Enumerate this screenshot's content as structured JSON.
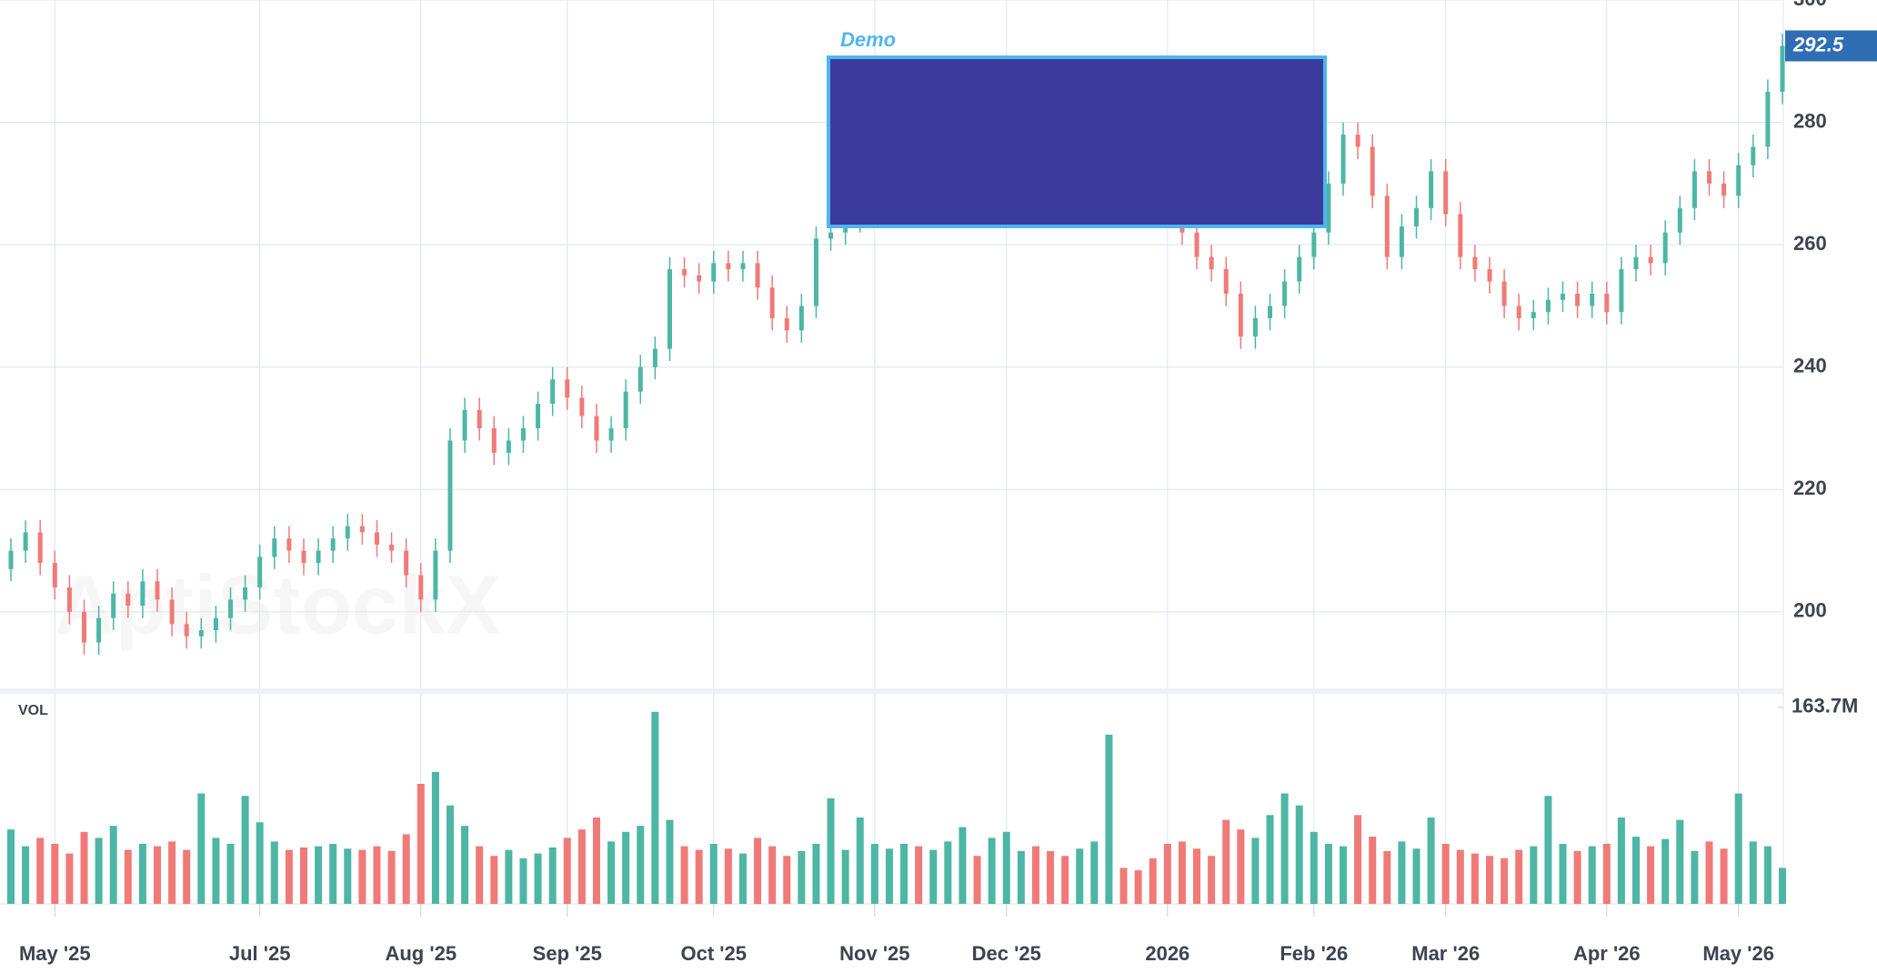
{
  "chart_data": {
    "type": "candlestick",
    "watermark": "AptiStockX",
    "annotation": "Demo",
    "up_color": "#4db6a4",
    "down_color": "#ef7a78",
    "grid": true,
    "ylim": [
      187.5,
      300
    ],
    "yticks": [
      200,
      220,
      240,
      260,
      280,
      300
    ],
    "categories": [
      null,
      null,
      null,
      "May '25",
      null,
      null,
      null,
      null,
      null,
      null,
      null,
      null,
      null,
      null,
      null,
      null,
      null,
      "Jul '25",
      null,
      null,
      null,
      null,
      null,
      null,
      null,
      null,
      null,
      null,
      "Aug '25",
      null,
      null,
      null,
      null,
      null,
      null,
      null,
      null,
      null,
      "Sep '25",
      null,
      null,
      null,
      null,
      null,
      null,
      null,
      null,
      null,
      "Oct '25",
      null,
      null,
      null,
      null,
      null,
      null,
      null,
      null,
      null,
      null,
      "Nov '25",
      null,
      null,
      null,
      null,
      null,
      null,
      null,
      null,
      "Dec '25",
      null,
      null,
      null,
      null,
      null,
      null,
      null,
      null,
      null,
      null,
      "2026",
      null,
      null,
      null,
      null,
      null,
      null,
      null,
      null,
      null,
      "Feb '26",
      null,
      null,
      null,
      null,
      null,
      null,
      null,
      null,
      "Mar '26",
      null,
      null,
      null,
      null,
      null,
      null,
      null,
      null,
      null,
      null,
      "Apr '26",
      null,
      null,
      null,
      null,
      null,
      null,
      null,
      null,
      "May '26",
      null,
      null,
      null
    ],
    "open": [
      207,
      210,
      213,
      208,
      204,
      200,
      195,
      199,
      203,
      201,
      205,
      202,
      198,
      196,
      197,
      199,
      202,
      204,
      209,
      212,
      210,
      208,
      210,
      212,
      214,
      213,
      211,
      210,
      206,
      202,
      210,
      228,
      233,
      230,
      226,
      228,
      230,
      234,
      238,
      235,
      232,
      228,
      230,
      236,
      240,
      243,
      256,
      255,
      254,
      257,
      256,
      257,
      253,
      248,
      246,
      250,
      261,
      262,
      264,
      268,
      270,
      272,
      275,
      273,
      276,
      278,
      280,
      277,
      279,
      282,
      284,
      281,
      278,
      276,
      279,
      283,
      285,
      282,
      280,
      276,
      270,
      262,
      258,
      256,
      252,
      245,
      248,
      250,
      254,
      258,
      262,
      270,
      278,
      276,
      268,
      258,
      263,
      266,
      272,
      265,
      258,
      256,
      254,
      250,
      248,
      249,
      251,
      252,
      250,
      252,
      249,
      256,
      258,
      257,
      262,
      266,
      272,
      270,
      268,
      273,
      276,
      285
    ],
    "high": [
      212,
      215,
      215,
      210,
      206,
      202,
      201,
      205,
      205,
      207,
      207,
      204,
      200,
      199,
      201,
      204,
      206,
      211,
      214,
      214,
      212,
      212,
      214,
      216,
      216,
      215,
      213,
      212,
      208,
      212,
      230,
      235,
      235,
      232,
      230,
      232,
      236,
      240,
      240,
      237,
      234,
      232,
      238,
      242,
      245,
      258,
      258,
      257,
      259,
      259,
      259,
      259,
      255,
      250,
      252,
      263,
      264,
      266,
      270,
      272,
      274,
      277,
      277,
      278,
      280,
      282,
      282,
      281,
      284,
      286,
      286,
      283,
      280,
      281,
      285,
      287,
      287,
      284,
      282,
      278,
      272,
      264,
      260,
      258,
      254,
      250,
      252,
      256,
      260,
      264,
      272,
      280,
      280,
      278,
      270,
      265,
      268,
      274,
      274,
      267,
      260,
      258,
      256,
      252,
      251,
      253,
      254,
      254,
      254,
      254,
      258,
      260,
      260,
      264,
      268,
      274,
      274,
      272,
      275,
      278,
      287,
      294.5
    ],
    "low": [
      205,
      208,
      206,
      202,
      198,
      193,
      193,
      197,
      199,
      199,
      200,
      196,
      194,
      194,
      195,
      197,
      200,
      202,
      207,
      208,
      206,
      206,
      208,
      210,
      211,
      209,
      208,
      204,
      200,
      200,
      208,
      226,
      228,
      224,
      224,
      226,
      228,
      232,
      233,
      230,
      226,
      226,
      228,
      234,
      238,
      241,
      253,
      252,
      252,
      254,
      254,
      251,
      246,
      244,
      244,
      248,
      259,
      260,
      262,
      266,
      268,
      270,
      271,
      271,
      274,
      276,
      275,
      275,
      277,
      280,
      279,
      276,
      274,
      274,
      277,
      281,
      280,
      278,
      274,
      268,
      260,
      256,
      254,
      250,
      243,
      243,
      246,
      248,
      252,
      256,
      260,
      268,
      274,
      266,
      256,
      256,
      261,
      264,
      263,
      256,
      254,
      252,
      248,
      246,
      246,
      247,
      249,
      248,
      248,
      247,
      247,
      254,
      255,
      255,
      260,
      264,
      268,
      266,
      266,
      271,
      274,
      283
    ],
    "close": [
      210,
      213,
      208,
      204,
      200,
      195,
      199,
      203,
      201,
      205,
      202,
      198,
      196,
      197,
      199,
      202,
      204,
      209,
      212,
      210,
      208,
      210,
      212,
      214,
      213,
      211,
      210,
      206,
      202,
      210,
      228,
      233,
      230,
      226,
      228,
      230,
      234,
      238,
      235,
      232,
      228,
      230,
      236,
      240,
      243,
      256,
      255,
      254,
      257,
      256,
      257,
      253,
      248,
      246,
      250,
      261,
      262,
      264,
      268,
      270,
      272,
      275,
      273,
      276,
      278,
      280,
      277,
      279,
      282,
      284,
      281,
      278,
      276,
      279,
      283,
      285,
      282,
      280,
      276,
      270,
      262,
      258,
      256,
      252,
      245,
      248,
      250,
      254,
      258,
      262,
      270,
      278,
      276,
      268,
      258,
      263,
      266,
      272,
      265,
      258,
      256,
      254,
      250,
      248,
      249,
      251,
      252,
      250,
      252,
      249,
      256,
      258,
      257,
      262,
      266,
      272,
      270,
      268,
      273,
      276,
      285,
      292.5
    ],
    "volume": {
      "label": "VOL",
      "ylim": [
        0,
        175
      ],
      "yticks": [
        {
          "value": 163.7,
          "label": "163.7M"
        }
      ],
      "values": [
        62,
        48,
        55,
        50,
        42,
        60,
        55,
        65,
        45,
        50,
        48,
        52,
        45,
        92,
        55,
        50,
        90,
        68,
        52,
        45,
        47,
        48,
        50,
        46,
        45,
        48,
        44,
        58,
        100,
        110,
        82,
        65,
        48,
        40,
        45,
        38,
        42,
        47,
        55,
        62,
        72,
        52,
        60,
        65,
        160,
        70,
        48,
        45,
        50,
        46,
        42,
        55,
        48,
        40,
        44,
        50,
        88,
        45,
        72,
        50,
        46,
        50,
        48,
        45,
        52,
        64,
        40,
        55,
        60,
        44,
        48,
        44,
        40,
        46,
        52,
        141,
        30,
        28,
        38,
        50,
        52,
        46,
        40,
        70,
        62,
        55,
        74,
        92,
        82,
        60,
        50,
        48,
        74,
        56,
        44,
        52,
        46,
        72,
        50,
        45,
        42,
        40,
        38,
        45,
        48,
        90,
        50,
        44,
        48,
        50,
        72,
        56,
        48,
        54,
        70,
        44,
        52,
        46,
        92,
        52,
        48,
        30
      ]
    }
  }
}
